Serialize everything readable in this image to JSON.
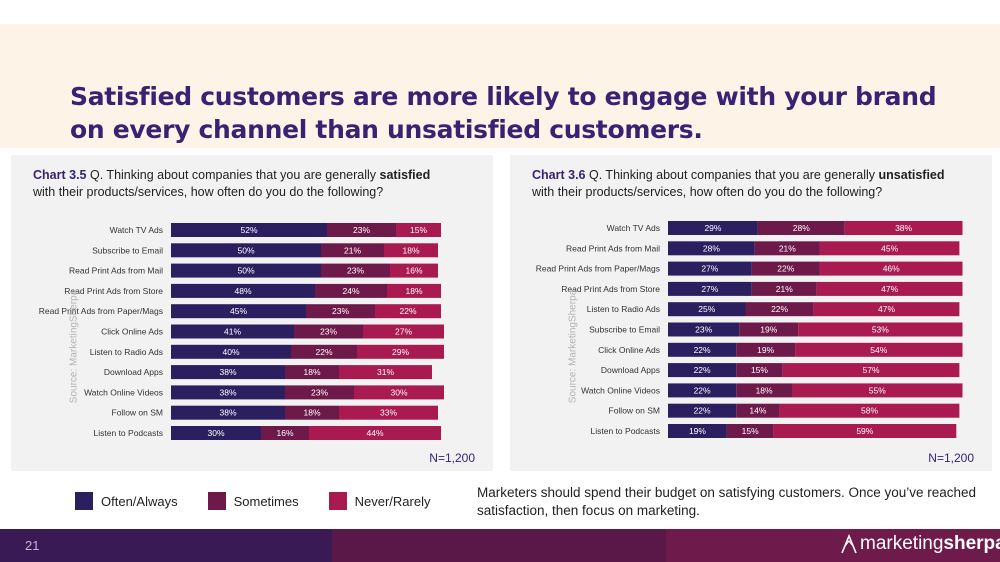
{
  "headline": "Satisfied customers are more likely to engage with your brand on every channel than unsatisfied customers.",
  "colors": {
    "often": "#2b1f60",
    "sometimes": "#6d1a4a",
    "never": "#a81a50",
    "accent": "#3a2272"
  },
  "legend": [
    {
      "key": "often",
      "label": "Often/Always"
    },
    {
      "key": "sometimes",
      "label": "Sometimes"
    },
    {
      "key": "never",
      "label": "Never/Rarely"
    }
  ],
  "note": "Marketers should spend their budget on satisfying customers. Once you’ve reached satisfaction, then focus on marketing.",
  "page_number": "21",
  "logo": {
    "part1": "marketing",
    "part2": "sherpa"
  },
  "panels": [
    {
      "chart_label": "Chart 3.5",
      "title_pre": "Q. Thinking about companies that you are generally",
      "title_bold": "satisfied",
      "title_post": "with their products/services, how often do you do the following?",
      "source": "Source: MarketingSherpa",
      "n": "N=1,200"
    },
    {
      "chart_label": "Chart 3.6",
      "title_pre": "Q. Thinking about companies that you are generally",
      "title_bold": "unsatisfied",
      "title_post": "with their products/services, how often do you do the following?",
      "source": "Source: MarketingSherpa",
      "n": "N=1,200"
    }
  ],
  "chart_data": [
    {
      "type": "bar",
      "orientation": "horizontal",
      "stacked": true,
      "title": "Chart 3.5 Q. Thinking about companies that you are generally satisfied with their products/services, how often do you do the following?",
      "categories": [
        "Watch TV Ads",
        "Subscribe to Email",
        "Read Print Ads from Mail",
        "Read Print Ads from Store",
        "Read Print Ads from Paper/Mags",
        "Click Online Ads",
        "Listen to Radio Ads",
        "Download Apps",
        "Watch Online Videos",
        "Follow on SM",
        "Listen to Podcasts"
      ],
      "series": [
        {
          "name": "Often/Always",
          "values": [
            52,
            50,
            50,
            48,
            45,
            41,
            40,
            38,
            38,
            38,
            30
          ]
        },
        {
          "name": "Sometimes",
          "values": [
            23,
            21,
            23,
            24,
            23,
            23,
            22,
            18,
            23,
            18,
            16
          ]
        },
        {
          "name": "Never/Rarely",
          "values": [
            15,
            18,
            16,
            18,
            22,
            27,
            29,
            31,
            30,
            33,
            44
          ]
        }
      ],
      "xlim": [
        0,
        100
      ],
      "n": "N=1,200"
    },
    {
      "type": "bar",
      "orientation": "horizontal",
      "stacked": true,
      "title": "Chart 3.6 Q. Thinking about companies that you are generally unsatisfied with their products/services, how often do you do the following?",
      "categories": [
        "Watch TV Ads",
        "Read Print Ads from Mail",
        "Read Print Ads from Paper/Mags",
        "Read Print Ads from Store",
        "Listen to Radio Ads",
        "Subscribe to Email",
        "Click Online Ads",
        "Download Apps",
        "Watch Online Videos",
        "Follow on SM",
        "Listen to Podcasts"
      ],
      "series": [
        {
          "name": "Often/Always",
          "values": [
            29,
            28,
            27,
            27,
            25,
            23,
            22,
            22,
            22,
            22,
            19
          ]
        },
        {
          "name": "Sometimes",
          "values": [
            28,
            21,
            22,
            21,
            22,
            19,
            19,
            15,
            18,
            14,
            15
          ]
        },
        {
          "name": "Never/Rarely",
          "values": [
            38,
            45,
            46,
            47,
            47,
            53,
            54,
            57,
            55,
            58,
            59
          ]
        }
      ],
      "xlim": [
        0,
        100
      ],
      "n": "N=1,200"
    }
  ]
}
